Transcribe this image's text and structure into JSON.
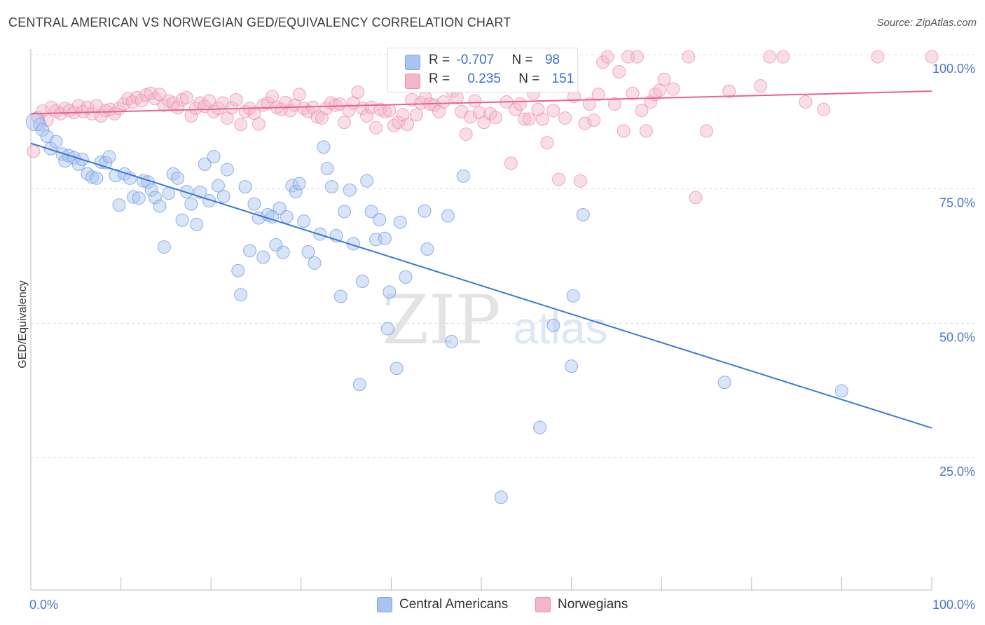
{
  "title": "CENTRAL AMERICAN VS NORWEGIAN GED/EQUIVALENCY CORRELATION CHART",
  "source": "Source: ZipAtlas.com",
  "watermark": {
    "zip": "ZIP",
    "atlas": "atlas"
  },
  "legend": {
    "blue": {
      "r_label": "R =",
      "r_value": "-0.707",
      "n_label": "N =",
      "n_value": "98",
      "color": "#a9c4ef"
    },
    "pink": {
      "r_label": "R =",
      "r_value": "0.235",
      "n_label": "N =",
      "n_value": "151",
      "color": "#f5b6c9"
    }
  },
  "bottom_legend": {
    "blue_label": "Central Americans",
    "pink_label": "Norwegians"
  },
  "chart_data": {
    "type": "scatter",
    "title": "CENTRAL AMERICAN VS NORWEGIAN GED/EQUIVALENCY CORRELATION CHART",
    "xlabel": "",
    "ylabel": "GED/Equivalency",
    "xlim": [
      0,
      100
    ],
    "ylim": [
      0,
      102
    ],
    "x_tick_labels": [
      "0.0%",
      "100.0%"
    ],
    "y_ticks": [
      25,
      50,
      75,
      100
    ],
    "y_tick_labels": [
      "25.0%",
      "50.0%",
      "75.0%",
      "100.0%"
    ],
    "colors": {
      "blue": "#3a78d8",
      "blue_fill": "#a9c4ef",
      "pink": "#e8628f",
      "pink_fill": "#f5b6c9"
    },
    "series": [
      {
        "name": "Central Americans",
        "trend": {
          "x0": 0,
          "y0": 83.5,
          "x1": 100,
          "y1": 30.5
        },
        "points": [
          [
            0.5,
            87.5
          ],
          [
            1.0,
            87.0
          ],
          [
            1.3,
            86.0
          ],
          [
            1.8,
            84.8
          ],
          [
            2.2,
            82.5
          ],
          [
            2.8,
            83.8
          ],
          [
            3.5,
            81.5
          ],
          [
            3.8,
            80.2
          ],
          [
            4.2,
            81.2
          ],
          [
            4.8,
            80.8
          ],
          [
            5.3,
            79.6
          ],
          [
            5.7,
            80.5
          ],
          [
            6.3,
            77.8
          ],
          [
            6.8,
            77.2
          ],
          [
            7.3,
            77.0
          ],
          [
            7.8,
            80.0
          ],
          [
            8.3,
            79.9
          ],
          [
            8.7,
            81.0
          ],
          [
            9.4,
            77.5
          ],
          [
            9.8,
            72.0
          ],
          [
            10.4,
            77.8
          ],
          [
            11.0,
            77.0
          ],
          [
            11.4,
            73.5
          ],
          [
            12.0,
            73.3
          ],
          [
            12.5,
            76.5
          ],
          [
            13.0,
            76.3
          ],
          [
            13.4,
            74.8
          ],
          [
            13.8,
            73.4
          ],
          [
            14.3,
            71.8
          ],
          [
            14.8,
            64.2
          ],
          [
            15.3,
            74.2
          ],
          [
            15.8,
            77.8
          ],
          [
            16.3,
            77.0
          ],
          [
            16.8,
            69.2
          ],
          [
            17.3,
            74.5
          ],
          [
            17.8,
            72.2
          ],
          [
            18.4,
            68.4
          ],
          [
            18.8,
            74.4
          ],
          [
            19.3,
            79.6
          ],
          [
            19.8,
            72.8
          ],
          [
            20.3,
            81.0
          ],
          [
            20.8,
            75.6
          ],
          [
            21.4,
            73.6
          ],
          [
            21.8,
            78.6
          ],
          [
            23.0,
            59.8
          ],
          [
            23.3,
            55.3
          ],
          [
            23.8,
            75.4
          ],
          [
            24.3,
            63.5
          ],
          [
            24.8,
            72.2
          ],
          [
            25.3,
            69.6
          ],
          [
            25.8,
            62.3
          ],
          [
            26.3,
            70.2
          ],
          [
            26.8,
            69.8
          ],
          [
            27.2,
            64.6
          ],
          [
            27.6,
            71.4
          ],
          [
            28.0,
            63.2
          ],
          [
            28.4,
            69.8
          ],
          [
            29.0,
            75.6
          ],
          [
            29.4,
            74.5
          ],
          [
            29.8,
            76.0
          ],
          [
            30.3,
            69.0
          ],
          [
            30.8,
            63.3
          ],
          [
            31.5,
            61.2
          ],
          [
            32.1,
            66.6
          ],
          [
            32.5,
            82.8
          ],
          [
            32.9,
            78.8
          ],
          [
            33.4,
            75.4
          ],
          [
            33.9,
            66.3
          ],
          [
            34.4,
            55.0
          ],
          [
            34.8,
            70.8
          ],
          [
            35.4,
            74.8
          ],
          [
            35.8,
            64.8
          ],
          [
            36.5,
            38.6
          ],
          [
            36.8,
            57.8
          ],
          [
            37.3,
            76.5
          ],
          [
            37.8,
            70.8
          ],
          [
            38.3,
            65.6
          ],
          [
            38.7,
            69.3
          ],
          [
            39.3,
            65.8
          ],
          [
            39.6,
            49.0
          ],
          [
            39.8,
            55.8
          ],
          [
            40.6,
            41.6
          ],
          [
            41.0,
            68.8
          ],
          [
            41.6,
            58.6
          ],
          [
            43.7,
            70.9
          ],
          [
            44.0,
            63.8
          ],
          [
            46.3,
            70.0
          ],
          [
            46.7,
            46.6
          ],
          [
            48.0,
            77.4
          ],
          [
            52.2,
            17.6
          ],
          [
            56.5,
            30.6
          ],
          [
            58.0,
            49.6
          ],
          [
            60.0,
            42.0
          ],
          [
            60.2,
            55.1
          ],
          [
            61.3,
            70.2
          ],
          [
            77.0,
            39.0
          ],
          [
            90.0,
            37.4
          ]
        ],
        "sizes": {
          "0.5,87.5": 26
        }
      },
      {
        "name": "Norwegians",
        "trend": {
          "x0": 0,
          "y0": 89.0,
          "x1": 100,
          "y1": 93.2
        },
        "points": [
          [
            0.3,
            82.0
          ],
          [
            0.8,
            88.3
          ],
          [
            1.3,
            89.5
          ],
          [
            1.8,
            87.8
          ],
          [
            2.3,
            90.2
          ],
          [
            2.8,
            89.5
          ],
          [
            3.3,
            89.0
          ],
          [
            3.8,
            90.0
          ],
          [
            4.3,
            89.6
          ],
          [
            4.8,
            89.2
          ],
          [
            5.3,
            90.5
          ],
          [
            5.8,
            89.4
          ],
          [
            6.3,
            90.2
          ],
          [
            6.8,
            89.0
          ],
          [
            7.3,
            90.5
          ],
          [
            7.8,
            88.6
          ],
          [
            8.3,
            89.6
          ],
          [
            8.8,
            89.8
          ],
          [
            9.3,
            89.0
          ],
          [
            9.8,
            90.0
          ],
          [
            10.3,
            90.8
          ],
          [
            10.8,
            91.8
          ],
          [
            11.3,
            91.2
          ],
          [
            11.8,
            92.0
          ],
          [
            12.3,
            91.4
          ],
          [
            12.8,
            92.5
          ],
          [
            13.3,
            92.8
          ],
          [
            13.8,
            91.8
          ],
          [
            14.3,
            92.6
          ],
          [
            14.8,
            90.6
          ],
          [
            15.3,
            91.4
          ],
          [
            15.8,
            91.0
          ],
          [
            16.3,
            90.1
          ],
          [
            16.8,
            91.6
          ],
          [
            17.3,
            92.0
          ],
          [
            17.8,
            88.6
          ],
          [
            18.3,
            90.0
          ],
          [
            18.8,
            91.0
          ],
          [
            19.3,
            90.4
          ],
          [
            19.8,
            91.4
          ],
          [
            20.3,
            89.4
          ],
          [
            20.8,
            90.0
          ],
          [
            21.3,
            91.0
          ],
          [
            21.8,
            88.2
          ],
          [
            22.3,
            90.1
          ],
          [
            22.8,
            91.6
          ],
          [
            23.3,
            87.0
          ],
          [
            23.8,
            89.4
          ],
          [
            24.3,
            90.0
          ],
          [
            24.8,
            89.1
          ],
          [
            25.3,
            87.1
          ],
          [
            25.8,
            90.6
          ],
          [
            26.3,
            91.0
          ],
          [
            26.8,
            92.2
          ],
          [
            27.3,
            90.2
          ],
          [
            27.8,
            89.8
          ],
          [
            28.3,
            91.1
          ],
          [
            28.8,
            89.6
          ],
          [
            29.3,
            90.6
          ],
          [
            29.8,
            92.6
          ],
          [
            30.3,
            90.0
          ],
          [
            30.8,
            89.4
          ],
          [
            31.3,
            90.2
          ],
          [
            31.8,
            88.4
          ],
          [
            32.3,
            88.2
          ],
          [
            32.8,
            90.0
          ],
          [
            33.3,
            91.0
          ],
          [
            33.8,
            90.6
          ],
          [
            34.3,
            90.8
          ],
          [
            34.8,
            87.4
          ],
          [
            35.3,
            89.6
          ],
          [
            35.8,
            91.0
          ],
          [
            36.3,
            93.0
          ],
          [
            36.8,
            90.0
          ],
          [
            37.3,
            88.6
          ],
          [
            37.8,
            90.2
          ],
          [
            38.3,
            86.4
          ],
          [
            38.8,
            89.8
          ],
          [
            39.3,
            89.4
          ],
          [
            39.8,
            89.6
          ],
          [
            40.3,
            86.8
          ],
          [
            40.8,
            87.4
          ],
          [
            41.3,
            88.8
          ],
          [
            41.8,
            87.0
          ],
          [
            42.3,
            91.6
          ],
          [
            42.8,
            88.8
          ],
          [
            43.3,
            91.0
          ],
          [
            43.8,
            92.0
          ],
          [
            44.3,
            90.8
          ],
          [
            44.8,
            90.6
          ],
          [
            45.3,
            89.4
          ],
          [
            45.8,
            91.2
          ],
          [
            46.3,
            94.8
          ],
          [
            46.8,
            93.2
          ],
          [
            47.3,
            92.0
          ],
          [
            47.8,
            89.4
          ],
          [
            48.3,
            85.2
          ],
          [
            48.8,
            88.4
          ],
          [
            49.3,
            91.4
          ],
          [
            49.8,
            89.2
          ],
          [
            50.3,
            87.4
          ],
          [
            51.0,
            89.0
          ],
          [
            51.6,
            88.3
          ],
          [
            52.3,
            96.2
          ],
          [
            52.8,
            91.2
          ],
          [
            53.3,
            79.8
          ],
          [
            53.8,
            89.8
          ],
          [
            54.3,
            90.8
          ],
          [
            54.8,
            88.0
          ],
          [
            55.3,
            88.0
          ],
          [
            55.8,
            92.8
          ],
          [
            56.3,
            89.8
          ],
          [
            56.8,
            88.0
          ],
          [
            57.3,
            83.6
          ],
          [
            58.0,
            89.6
          ],
          [
            58.6,
            76.8
          ],
          [
            59.3,
            88.2
          ],
          [
            59.8,
            94.8
          ],
          [
            60.3,
            92.2
          ],
          [
            61.0,
            76.5
          ],
          [
            61.5,
            87.2
          ],
          [
            62.0,
            90.8
          ],
          [
            62.5,
            87.8
          ],
          [
            63.0,
            92.6
          ],
          [
            63.5,
            98.6
          ],
          [
            64.0,
            99.6
          ],
          [
            64.8,
            90.8
          ],
          [
            65.3,
            96.8
          ],
          [
            65.8,
            85.8
          ],
          [
            66.3,
            99.6
          ],
          [
            66.8,
            92.8
          ],
          [
            67.3,
            99.6
          ],
          [
            67.8,
            89.6
          ],
          [
            68.3,
            85.8
          ],
          [
            68.8,
            91.2
          ],
          [
            69.3,
            92.6
          ],
          [
            69.8,
            93.4
          ],
          [
            70.3,
            95.4
          ],
          [
            71.3,
            93.6
          ],
          [
            73.0,
            99.6
          ],
          [
            73.8,
            73.4
          ],
          [
            75.0,
            85.8
          ],
          [
            77.5,
            93.2
          ],
          [
            81.0,
            94.2
          ],
          [
            82.0,
            99.6
          ],
          [
            83.5,
            99.6
          ],
          [
            86.0,
            91.2
          ],
          [
            88.0,
            89.8
          ],
          [
            94.0,
            99.6
          ],
          [
            100.0,
            99.6
          ]
        ],
        "sizes": {
          "0.3,82.0": 26
        }
      }
    ]
  }
}
